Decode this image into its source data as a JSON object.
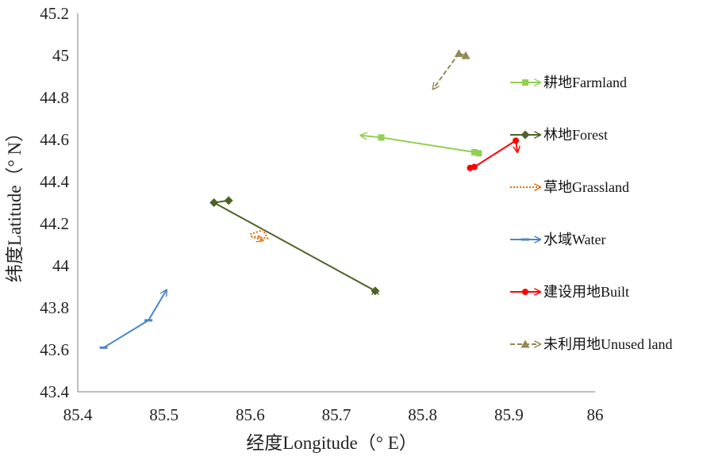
{
  "chart_data": {
    "type": "line",
    "title": "",
    "xlabel": "经度Longitude（° E）",
    "ylabel": "纬度Latitude（° N）",
    "xlim": [
      85.4,
      86
    ],
    "ylim": [
      43.4,
      45.2
    ],
    "xticks": [
      "85.4",
      "85.5",
      "85.6",
      "85.7",
      "85.8",
      "85.9",
      "86"
    ],
    "yticks": [
      "43.4",
      "43.6",
      "43.8",
      "44",
      "44.2",
      "44.4",
      "44.6",
      "44.8",
      "45",
      "45.2"
    ],
    "grid": false,
    "legend_position": "right",
    "series": [
      {
        "name": "耕地Farmland",
        "color": "#92D050",
        "marker": "square",
        "dash": "solid",
        "x": [
          85.865,
          85.86,
          85.752,
          85.728
        ],
        "y": [
          44.535,
          44.54,
          44.61,
          44.62
        ]
      },
      {
        "name": "林地Forest",
        "color": "#4F6228",
        "marker": "diamond",
        "dash": "solid",
        "x": [
          85.575,
          85.558,
          85.745,
          85.745
        ],
        "y": [
          44.31,
          44.3,
          43.88,
          43.89
        ]
      },
      {
        "name": "草地Grassland",
        "color": "#E46C0A",
        "marker": "none",
        "dash": "dot",
        "x": [
          85.6,
          85.615,
          85.62,
          85.6,
          85.615
        ],
        "y": [
          44.15,
          44.17,
          44.13,
          44.14,
          44.12
        ]
      },
      {
        "name": "水域Water",
        "color": "#4A86C8",
        "marker": "dash",
        "dash": "solid",
        "x": [
          85.43,
          85.482,
          85.503
        ],
        "y": [
          43.61,
          43.74,
          43.885
        ]
      },
      {
        "name": "建设用地Built",
        "color": "#FF0000",
        "marker": "circle",
        "dash": "solid",
        "x": [
          85.855,
          85.86,
          85.908,
          85.91
        ],
        "y": [
          44.465,
          44.47,
          44.595,
          44.54
        ]
      },
      {
        "name": "未利用地Unused land",
        "color": "#938953",
        "marker": "triangle",
        "dash": "dash",
        "x": [
          85.85,
          85.842,
          85.812
        ],
        "y": [
          45.0,
          45.01,
          44.84
        ]
      }
    ]
  }
}
